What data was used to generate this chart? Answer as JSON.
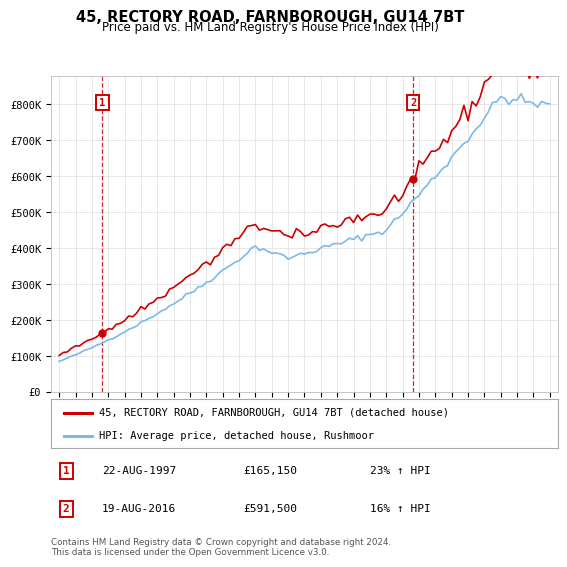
{
  "title": "45, RECTORY ROAD, FARNBOROUGH, GU14 7BT",
  "subtitle": "Price paid vs. HM Land Registry's House Price Index (HPI)",
  "legend_line1": "45, RECTORY ROAD, FARNBOROUGH, GU14 7BT (detached house)",
  "legend_line2": "HPI: Average price, detached house, Rushmoor",
  "annotation1_date": "22-AUG-1997",
  "annotation1_price": "£165,150",
  "annotation1_hpi": "23% ↑ HPI",
  "annotation2_date": "19-AUG-2016",
  "annotation2_price": "£591,500",
  "annotation2_hpi": "16% ↑ HPI",
  "footnote": "Contains HM Land Registry data © Crown copyright and database right 2024.\nThis data is licensed under the Open Government Licence v3.0.",
  "sale1_year": 1997.65,
  "sale1_price": 165150,
  "sale2_year": 2016.65,
  "sale2_price": 591500,
  "hpi_color": "#7cb9e8",
  "price_color": "#cc0000",
  "annotation_box_color": "#cc0000",
  "ylim_min": 0,
  "ylim_max": 880000,
  "ytick_values": [
    0,
    100000,
    200000,
    300000,
    400000,
    500000,
    600000,
    700000,
    800000
  ],
  "ytick_labels": [
    "£0",
    "£100K",
    "£200K",
    "£300K",
    "£400K",
    "£500K",
    "£600K",
    "£700K",
    "£800K"
  ],
  "xlim_min": 1994.5,
  "xlim_max": 2025.5,
  "background_color": "#ffffff",
  "grid_color": "#dddddd"
}
